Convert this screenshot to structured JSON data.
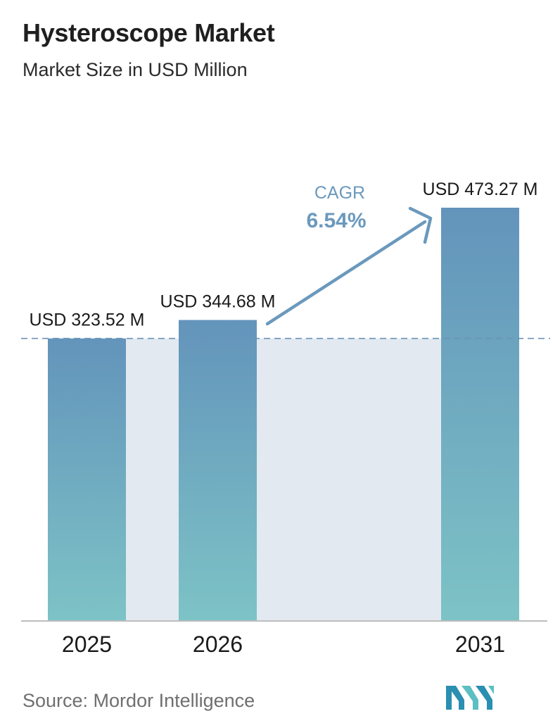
{
  "header": {
    "title": "Hysteroscope Market",
    "subtitle": "Market Size in USD Million"
  },
  "cagr": {
    "label": "CAGR",
    "value": "6.54%"
  },
  "footer": {
    "source": "Source:  Mordor Intelligence",
    "logo": "mordor-intelligence-logo"
  },
  "colors": {
    "bar_top": "#6394bb",
    "bar_bottom": "#7dc3c6",
    "band": "#e2e9f1",
    "dashed_line": "#6b93b6",
    "arrow": "#6b99bd",
    "cagr_text": "#6b99bd",
    "axis": "#bdbdbd"
  },
  "chart_data": {
    "type": "bar",
    "title": "Hysteroscope Market",
    "subtitle": "Market Size in USD Million",
    "categories": [
      "2025",
      "2026",
      "2031"
    ],
    "series": [
      {
        "values": [
          323.52,
          344.68,
          473.27
        ]
      }
    ],
    "data_labels": [
      "USD 323.52 M",
      "USD 344.68 M",
      "USD 473.27 M"
    ],
    "xlabel": "",
    "ylabel": "",
    "ylim": [
      0,
      473.27
    ],
    "grid": false,
    "reference_line": 323.52,
    "cagr": "6.54%"
  }
}
